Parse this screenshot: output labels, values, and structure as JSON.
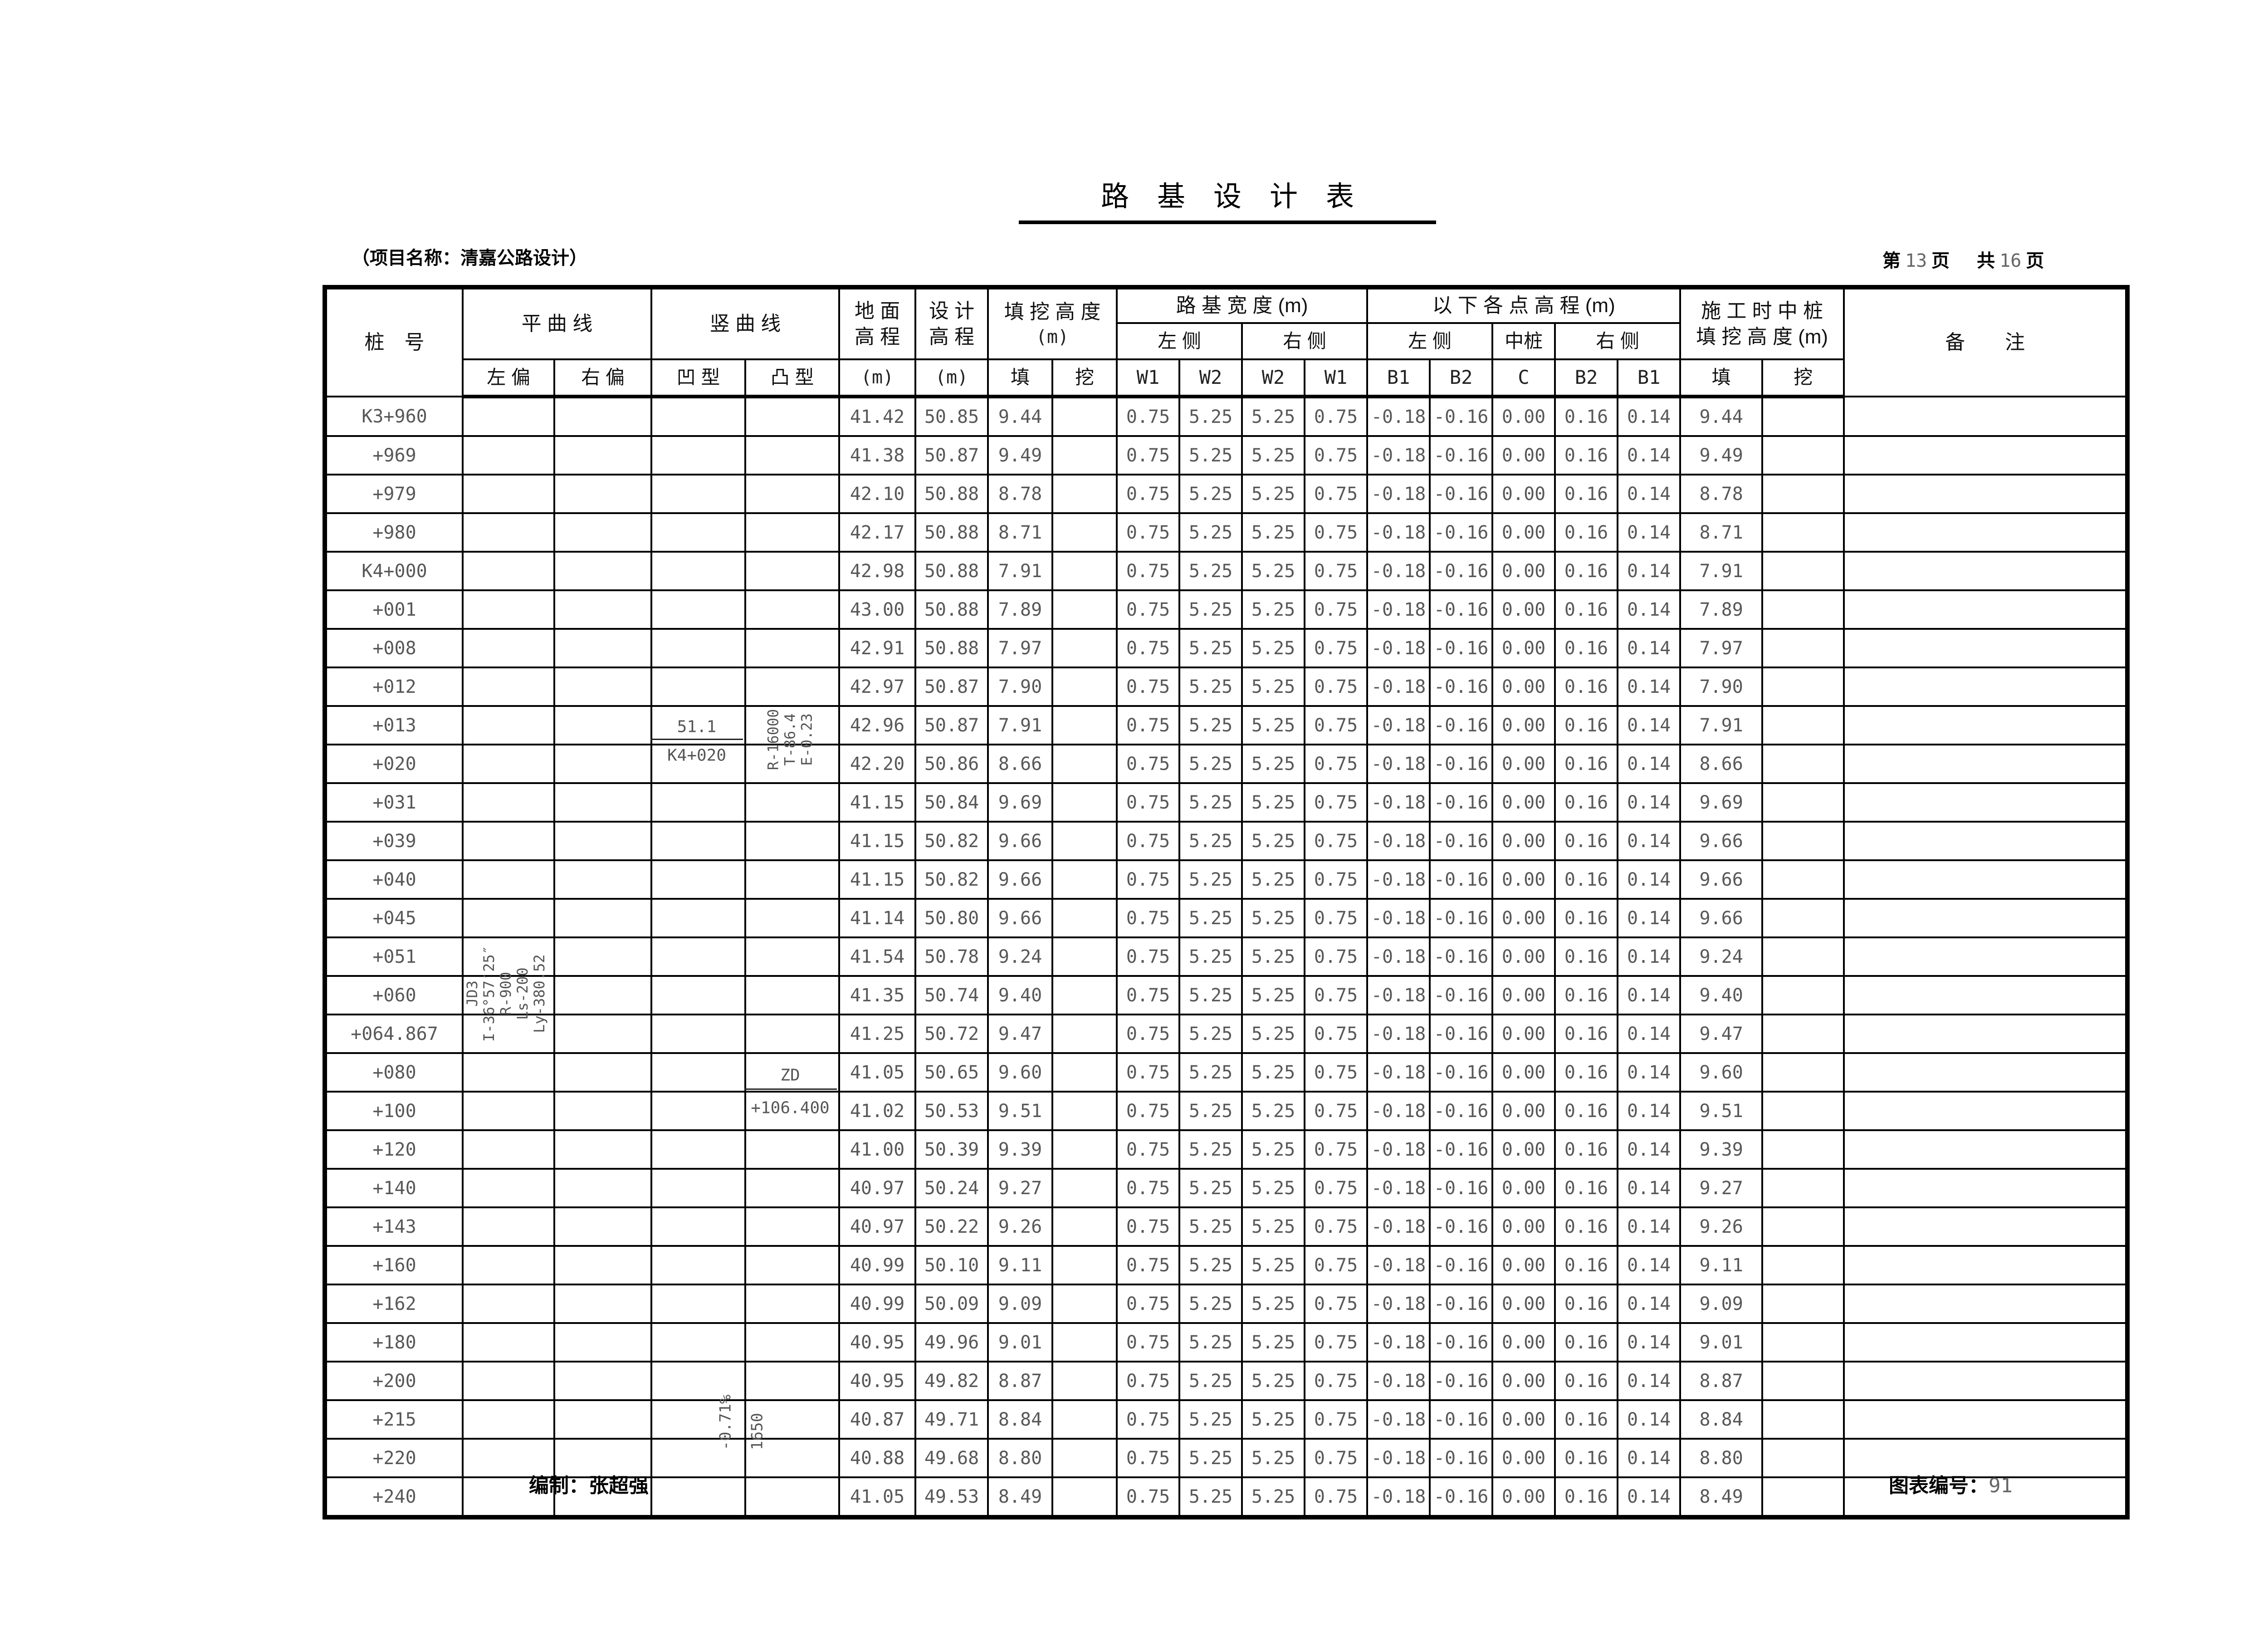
{
  "title": "路　基　设　计　表",
  "project_label": "（项目名称：清嘉公路设计）",
  "page_info": {
    "label_page": "第",
    "current": "13",
    "label_page2": "页",
    "label_total": "共",
    "total": "16",
    "label_total2": "页"
  },
  "header": {
    "station": "桩　号",
    "group_hcurve": "平 曲 线",
    "hcurve_left": "左 偏",
    "hcurve_right": "右 偏",
    "group_vcurve": "竖 曲 线",
    "vcurve_concave": "凹 型",
    "vcurve_convex": "凸 型",
    "ground_l1": "地 面",
    "ground_l2": "高 程",
    "design_l1": "设 计",
    "design_l2": "高 程",
    "fillcut_l1": "填 挖 高 度",
    "fillcut_l2": "(m)",
    "unit_m": "(m)",
    "fill": "填",
    "cut": "挖",
    "group_width": "路 基 宽 度 (m)",
    "width_left": "左 侧",
    "width_right": "右 侧",
    "w1": "W1",
    "w2": "W2",
    "group_points": "以 下 各 点 高 程 (m)",
    "points_left": "左 侧",
    "points_center": "中桩",
    "points_right": "右 侧",
    "b1": "B1",
    "b2": "B2",
    "c": "C",
    "construction_l1": "施 工 时 中 桩",
    "construction_l2": "填 挖 高 度 (m)",
    "remarks": "备　　注"
  },
  "annotations": {
    "jd3": [
      "JD3",
      "I-36°57′25″",
      "R-900",
      "Ls-200",
      "Ly-380.52"
    ],
    "vcurve_point": {
      "elevation": "51.1",
      "station": "K4+020"
    },
    "vcurve_params": [
      "R-16000",
      "T-86.4",
      "E-0.23"
    ],
    "zd": {
      "label": "ZD",
      "station": "+106.400"
    },
    "slope": "-0.71%",
    "slope_length": "1650"
  },
  "footer": {
    "prepared_label": "编制：",
    "prepared_by": "张超强",
    "chart_label": "图表编号：",
    "chart_no": "91"
  },
  "table": {
    "row_columns": [
      "station",
      "ground",
      "design",
      "fill",
      "w1_left",
      "w2_left",
      "w2_right",
      "w1_right",
      "b1_left",
      "b2_left",
      "c",
      "b2_right",
      "b1_right",
      "construction_fill"
    ],
    "rows": [
      [
        "K3+960",
        "41.42",
        "50.85",
        "9.44",
        "0.75",
        "5.25",
        "5.25",
        "0.75",
        "-0.18",
        "-0.16",
        "0.00",
        "0.16",
        "0.14",
        "9.44"
      ],
      [
        "+969",
        "41.38",
        "50.87",
        "9.49",
        "0.75",
        "5.25",
        "5.25",
        "0.75",
        "-0.18",
        "-0.16",
        "0.00",
        "0.16",
        "0.14",
        "9.49"
      ],
      [
        "+979",
        "42.10",
        "50.88",
        "8.78",
        "0.75",
        "5.25",
        "5.25",
        "0.75",
        "-0.18",
        "-0.16",
        "0.00",
        "0.16",
        "0.14",
        "8.78"
      ],
      [
        "+980",
        "42.17",
        "50.88",
        "8.71",
        "0.75",
        "5.25",
        "5.25",
        "0.75",
        "-0.18",
        "-0.16",
        "0.00",
        "0.16",
        "0.14",
        "8.71"
      ],
      [
        "K4+000",
        "42.98",
        "50.88",
        "7.91",
        "0.75",
        "5.25",
        "5.25",
        "0.75",
        "-0.18",
        "-0.16",
        "0.00",
        "0.16",
        "0.14",
        "7.91"
      ],
      [
        "+001",
        "43.00",
        "50.88",
        "7.89",
        "0.75",
        "5.25",
        "5.25",
        "0.75",
        "-0.18",
        "-0.16",
        "0.00",
        "0.16",
        "0.14",
        "7.89"
      ],
      [
        "+008",
        "42.91",
        "50.88",
        "7.97",
        "0.75",
        "5.25",
        "5.25",
        "0.75",
        "-0.18",
        "-0.16",
        "0.00",
        "0.16",
        "0.14",
        "7.97"
      ],
      [
        "+012",
        "42.97",
        "50.87",
        "7.90",
        "0.75",
        "5.25",
        "5.25",
        "0.75",
        "-0.18",
        "-0.16",
        "0.00",
        "0.16",
        "0.14",
        "7.90"
      ],
      [
        "+013",
        "42.96",
        "50.87",
        "7.91",
        "0.75",
        "5.25",
        "5.25",
        "0.75",
        "-0.18",
        "-0.16",
        "0.00",
        "0.16",
        "0.14",
        "7.91"
      ],
      [
        "+020",
        "42.20",
        "50.86",
        "8.66",
        "0.75",
        "5.25",
        "5.25",
        "0.75",
        "-0.18",
        "-0.16",
        "0.00",
        "0.16",
        "0.14",
        "8.66"
      ],
      [
        "+031",
        "41.15",
        "50.84",
        "9.69",
        "0.75",
        "5.25",
        "5.25",
        "0.75",
        "-0.18",
        "-0.16",
        "0.00",
        "0.16",
        "0.14",
        "9.69"
      ],
      [
        "+039",
        "41.15",
        "50.82",
        "9.66",
        "0.75",
        "5.25",
        "5.25",
        "0.75",
        "-0.18",
        "-0.16",
        "0.00",
        "0.16",
        "0.14",
        "9.66"
      ],
      [
        "+040",
        "41.15",
        "50.82",
        "9.66",
        "0.75",
        "5.25",
        "5.25",
        "0.75",
        "-0.18",
        "-0.16",
        "0.00",
        "0.16",
        "0.14",
        "9.66"
      ],
      [
        "+045",
        "41.14",
        "50.80",
        "9.66",
        "0.75",
        "5.25",
        "5.25",
        "0.75",
        "-0.18",
        "-0.16",
        "0.00",
        "0.16",
        "0.14",
        "9.66"
      ],
      [
        "+051",
        "41.54",
        "50.78",
        "9.24",
        "0.75",
        "5.25",
        "5.25",
        "0.75",
        "-0.18",
        "-0.16",
        "0.00",
        "0.16",
        "0.14",
        "9.24"
      ],
      [
        "+060",
        "41.35",
        "50.74",
        "9.40",
        "0.75",
        "5.25",
        "5.25",
        "0.75",
        "-0.18",
        "-0.16",
        "0.00",
        "0.16",
        "0.14",
        "9.40"
      ],
      [
        "+064.867",
        "41.25",
        "50.72",
        "9.47",
        "0.75",
        "5.25",
        "5.25",
        "0.75",
        "-0.18",
        "-0.16",
        "0.00",
        "0.16",
        "0.14",
        "9.47"
      ],
      [
        "+080",
        "41.05",
        "50.65",
        "9.60",
        "0.75",
        "5.25",
        "5.25",
        "0.75",
        "-0.18",
        "-0.16",
        "0.00",
        "0.16",
        "0.14",
        "9.60"
      ],
      [
        "+100",
        "41.02",
        "50.53",
        "9.51",
        "0.75",
        "5.25",
        "5.25",
        "0.75",
        "-0.18",
        "-0.16",
        "0.00",
        "0.16",
        "0.14",
        "9.51"
      ],
      [
        "+120",
        "41.00",
        "50.39",
        "9.39",
        "0.75",
        "5.25",
        "5.25",
        "0.75",
        "-0.18",
        "-0.16",
        "0.00",
        "0.16",
        "0.14",
        "9.39"
      ],
      [
        "+140",
        "40.97",
        "50.24",
        "9.27",
        "0.75",
        "5.25",
        "5.25",
        "0.75",
        "-0.18",
        "-0.16",
        "0.00",
        "0.16",
        "0.14",
        "9.27"
      ],
      [
        "+143",
        "40.97",
        "50.22",
        "9.26",
        "0.75",
        "5.25",
        "5.25",
        "0.75",
        "-0.18",
        "-0.16",
        "0.00",
        "0.16",
        "0.14",
        "9.26"
      ],
      [
        "+160",
        "40.99",
        "50.10",
        "9.11",
        "0.75",
        "5.25",
        "5.25",
        "0.75",
        "-0.18",
        "-0.16",
        "0.00",
        "0.16",
        "0.14",
        "9.11"
      ],
      [
        "+162",
        "40.99",
        "50.09",
        "9.09",
        "0.75",
        "5.25",
        "5.25",
        "0.75",
        "-0.18",
        "-0.16",
        "0.00",
        "0.16",
        "0.14",
        "9.09"
      ],
      [
        "+180",
        "40.95",
        "49.96",
        "9.01",
        "0.75",
        "5.25",
        "5.25",
        "0.75",
        "-0.18",
        "-0.16",
        "0.00",
        "0.16",
        "0.14",
        "9.01"
      ],
      [
        "+200",
        "40.95",
        "49.82",
        "8.87",
        "0.75",
        "5.25",
        "5.25",
        "0.75",
        "-0.18",
        "-0.16",
        "0.00",
        "0.16",
        "0.14",
        "8.87"
      ],
      [
        "+215",
        "40.87",
        "49.71",
        "8.84",
        "0.75",
        "5.25",
        "5.25",
        "0.75",
        "-0.18",
        "-0.16",
        "0.00",
        "0.16",
        "0.14",
        "8.84"
      ],
      [
        "+220",
        "40.88",
        "49.68",
        "8.80",
        "0.75",
        "5.25",
        "5.25",
        "0.75",
        "-0.18",
        "-0.16",
        "0.00",
        "0.16",
        "0.14",
        "8.80"
      ],
      [
        "+240",
        "41.05",
        "49.53",
        "8.49",
        "0.75",
        "5.25",
        "5.25",
        "0.75",
        "-0.18",
        "-0.16",
        "0.00",
        "0.16",
        "0.14",
        "8.49"
      ]
    ]
  }
}
